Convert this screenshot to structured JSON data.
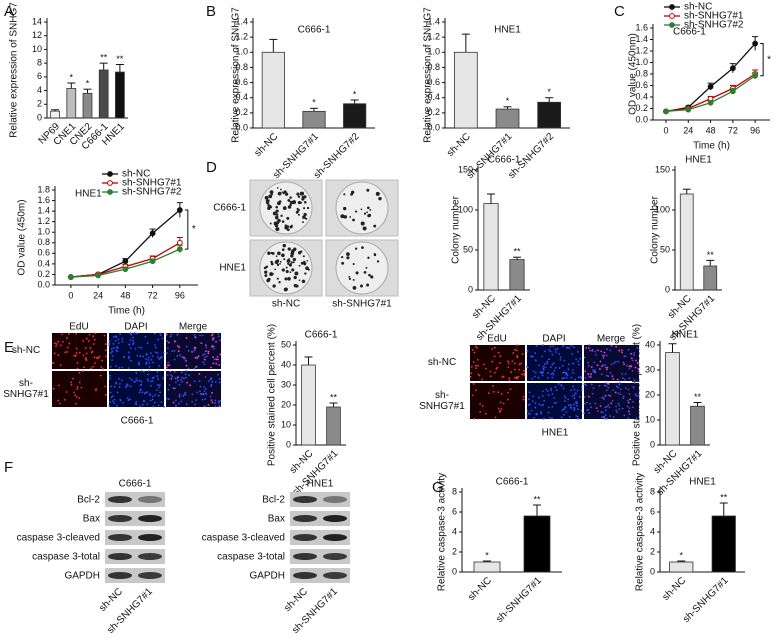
{
  "panels": [
    "A",
    "B",
    "C",
    "D",
    "E",
    "F",
    "G"
  ],
  "chart_data": [
    {
      "type": "bar",
      "ylabel": "Relative expression of SNHG7",
      "categories": [
        "NP69",
        "CNE1",
        "CNE2",
        "C666-1",
        "HNE1"
      ],
      "values": [
        1.0,
        4.3,
        3.6,
        7.0,
        6.7
      ],
      "errors": [
        0.2,
        0.8,
        0.6,
        1.0,
        1.1
      ],
      "colors": [
        "#f0f0f0",
        "#bdbdbd",
        "#8a8a8a",
        "#4a4a4a",
        "#111111"
      ],
      "annotations": [
        null,
        "*",
        "*",
        "**",
        "**"
      ],
      "ylim": [
        0,
        14
      ],
      "yticks": [
        0,
        2,
        4,
        6,
        8,
        10,
        12,
        14
      ]
    },
    {
      "type": "bar",
      "title": "C666-1",
      "ylabel": "Relative expression of SNHG7",
      "categories": [
        "sh-NC",
        "sh-SNHG7#1",
        "sh-SNHG7#2"
      ],
      "values": [
        1.0,
        0.22,
        0.32
      ],
      "errors": [
        0.17,
        0.04,
        0.05
      ],
      "colors": [
        "#e6e6e6",
        "#8a8a8a",
        "#1a1a1a"
      ],
      "annotations": [
        null,
        "*",
        "*"
      ],
      "ylim": [
        0,
        1.4
      ],
      "yticks": [
        {
          "value": 0,
          "label": "0.0"
        },
        {
          "value": 0.2,
          "label": "0.2"
        },
        {
          "value": 0.4,
          "label": "0.4"
        },
        {
          "value": 0.6,
          "label": "0.6"
        },
        {
          "value": 0.8,
          "label": "0.8"
        },
        {
          "value": 1.0,
          "label": "1.0"
        },
        {
          "value": 1.2,
          "label": "1.2"
        },
        {
          "value": 1.4,
          "label": "1.4"
        }
      ]
    },
    {
      "type": "bar",
      "title": "HNE1",
      "ylabel": "Relative expression of SNHG7",
      "categories": [
        "sh-NC",
        "sh-SNHG7#1",
        "sh-SNHG7#2"
      ],
      "values": [
        1.0,
        0.25,
        0.34
      ],
      "errors": [
        0.24,
        0.03,
        0.06
      ],
      "colors": [
        "#e6e6e6",
        "#8a8a8a",
        "#1a1a1a"
      ],
      "annotations": [
        null,
        "*",
        "*"
      ],
      "ylim": [
        0,
        1.4
      ],
      "yticks": [
        {
          "value": 0,
          "label": "0.0"
        },
        {
          "value": 0.2,
          "label": "0.2"
        },
        {
          "value": 0.4,
          "label": "0.4"
        },
        {
          "value": 0.6,
          "label": "0.6"
        },
        {
          "value": 0.8,
          "label": "0.8"
        },
        {
          "value": 1.0,
          "label": "1.0"
        },
        {
          "value": 1.2,
          "label": "1.2"
        },
        {
          "value": 1.4,
          "label": "1.4"
        }
      ]
    },
    {
      "type": "line",
      "title": "C666-1",
      "ylabel": "OD value (450nm)",
      "xlabel": "Time (h)",
      "x": [
        0,
        24,
        48,
        72,
        96
      ],
      "series": [
        {
          "name": "sh-NC",
          "color": "#111111",
          "fill": "#111111",
          "values": [
            0.15,
            0.22,
            0.58,
            0.9,
            1.33
          ],
          "errors": [
            0.01,
            0.02,
            0.06,
            0.08,
            0.12
          ]
        },
        {
          "name": "sh-SNHG7#1",
          "color": "#c00000",
          "fill": "#ffffff",
          "values": [
            0.15,
            0.2,
            0.37,
            0.55,
            0.8
          ],
          "errors": [
            0.01,
            0.02,
            0.04,
            0.05,
            0.07
          ]
        },
        {
          "name": "sh-SNHG7#2",
          "color": "#2e7d32",
          "fill": "#2e7d32",
          "values": [
            0.15,
            0.18,
            0.3,
            0.5,
            0.77
          ],
          "errors": [
            0.01,
            0.02,
            0.03,
            0.05,
            0.06
          ]
        }
      ],
      "significance": "*",
      "xlim": [
        -14,
        112
      ],
      "xticks": [
        0,
        24,
        48,
        72,
        96
      ],
      "ylim": [
        0,
        1.6
      ],
      "yticks": [
        {
          "value": 0,
          "label": "0.0"
        },
        {
          "value": 0.2,
          "label": "0.2"
        },
        {
          "value": 0.4,
          "label": "0.4"
        },
        {
          "value": 0.6,
          "label": "0.6"
        },
        {
          "value": 0.8,
          "label": "0.8"
        },
        {
          "value": 1.0,
          "label": "1.0"
        },
        {
          "value": 1.2,
          "label": "1.2"
        },
        {
          "value": 1.4,
          "label": "1.4"
        },
        {
          "value": 1.6,
          "label": "1.6"
        }
      ]
    },
    {
      "type": "line",
      "title": "HNE1",
      "ylabel": "OD value (450m)",
      "xlabel": "Time (h)",
      "x": [
        0,
        24,
        48,
        72,
        96
      ],
      "series": [
        {
          "name": "sh-NC",
          "color": "#111111",
          "fill": "#111111",
          "values": [
            0.15,
            0.2,
            0.45,
            0.98,
            1.42
          ],
          "errors": [
            0.01,
            0.02,
            0.05,
            0.08,
            0.14
          ]
        },
        {
          "name": "sh-SNHG7#1",
          "color": "#c00000",
          "fill": "#ffffff",
          "values": [
            0.15,
            0.2,
            0.35,
            0.5,
            0.8
          ],
          "errors": [
            0.01,
            0.02,
            0.04,
            0.05,
            0.1
          ]
        },
        {
          "name": "sh-SNHG7#2",
          "color": "#2e7d32",
          "fill": "#2e7d32",
          "values": [
            0.15,
            0.18,
            0.3,
            0.45,
            0.68
          ],
          "errors": [
            0.01,
            0.02,
            0.03,
            0.04,
            0.07
          ]
        }
      ],
      "significance": "*",
      "xlim": [
        -14,
        112
      ],
      "xticks": [
        0,
        24,
        48,
        72,
        96
      ],
      "ylim": [
        0,
        1.8
      ],
      "yticks": [
        {
          "value": 0,
          "label": "0.0"
        },
        {
          "value": 0.2,
          "label": "0.2"
        },
        {
          "value": 0.4,
          "label": "0.4"
        },
        {
          "value": 0.6,
          "label": "0.6"
        },
        {
          "value": 0.8,
          "label": "0.8"
        },
        {
          "value": 1.0,
          "label": "1.0"
        },
        {
          "value": 1.2,
          "label": "1.2"
        },
        {
          "value": 1.4,
          "label": "1.4"
        },
        {
          "value": 1.6,
          "label": "1.6"
        },
        {
          "value": 1.8,
          "label": "1.8"
        }
      ]
    },
    {
      "type": "bar",
      "title": "C666-1",
      "ylabel": "Colony number",
      "categories": [
        "sh-NC",
        "sh-SNHG7#1"
      ],
      "values": [
        108,
        38
      ],
      "errors": [
        12,
        3
      ],
      "colors": [
        "#e6e6e6",
        "#8a8a8a"
      ],
      "annotations": [
        null,
        "**"
      ],
      "ylim": [
        0,
        150
      ],
      "yticks": [
        0,
        50,
        100,
        150
      ]
    },
    {
      "type": "bar",
      "title": "HNE1",
      "ylabel": "Colony number",
      "categories": [
        "sh-NC",
        "sh-SNHG7#1"
      ],
      "values": [
        120,
        30
      ],
      "errors": [
        6,
        7
      ],
      "colors": [
        "#e6e6e6",
        "#8a8a8a"
      ],
      "annotations": [
        null,
        "**"
      ],
      "ylim": [
        0,
        150
      ],
      "yticks": [
        0,
        50,
        100,
        150
      ]
    },
    {
      "type": "bar",
      "title": "C666-1",
      "ylabel": "Positive stained cell percent (%)",
      "categories": [
        "sh-NC",
        "sh-SNHG7#1"
      ],
      "values": [
        40,
        19
      ],
      "errors": [
        4,
        2
      ],
      "colors": [
        "#e6e6e6",
        "#8a8a8a"
      ],
      "annotations": [
        null,
        "**"
      ],
      "ylim": [
        0,
        50
      ],
      "yticks": [
        0,
        10,
        20,
        30,
        40,
        50
      ]
    },
    {
      "type": "bar",
      "title": "HNE1",
      "ylabel": "Positive stained cell percent (%)",
      "categories": [
        "sh-NC",
        "sh-SNHG7#1"
      ],
      "values": [
        37,
        15.5
      ],
      "errors": [
        3.5,
        1.5
      ],
      "colors": [
        "#e6e6e6",
        "#8a8a8a"
      ],
      "annotations": [
        null,
        "**"
      ],
      "ylim": [
        0,
        40
      ],
      "yticks": [
        0,
        10,
        20,
        30,
        40
      ]
    },
    {
      "type": "bar",
      "title": "C666-1",
      "ylabel": "Relative caspase-3 activity",
      "categories": [
        "sh-NC",
        "sh-SNHG7#1"
      ],
      "values": [
        1.0,
        5.6
      ],
      "errors": [
        0.1,
        1.1
      ],
      "colors": [
        "#e6e6e6",
        "#000000"
      ],
      "annotations": [
        "*",
        "**"
      ],
      "ylim": [
        0,
        8
      ],
      "yticks": [
        0,
        2,
        4,
        6,
        8
      ]
    },
    {
      "type": "bar",
      "title": "HNE1",
      "ylabel": "Relative caspase-3 activity",
      "categories": [
        "sh-NC",
        "sh-SNHG7#1"
      ],
      "values": [
        1.0,
        5.6
      ],
      "errors": [
        0.1,
        1.3
      ],
      "colors": [
        "#e6e6e6",
        "#000000"
      ],
      "annotations": [
        "*",
        "**"
      ],
      "ylim": [
        0,
        8
      ],
      "yticks": [
        0,
        2,
        4,
        6,
        8
      ]
    }
  ],
  "colony_images": {
    "rows": [
      "C666-1",
      "HNE1"
    ],
    "columns": [
      "sh-NC",
      "sh-SNHG7#1"
    ]
  },
  "if_images": [
    {
      "channels": [
        "EdU",
        "DAPI",
        "Merge"
      ],
      "rows": [
        "sh-NC",
        "sh-SNHG7#1"
      ],
      "cell_line": "C666-1"
    },
    {
      "channels": [
        "EdU",
        "DAPI",
        "Merge"
      ],
      "rows": [
        "sh-NC",
        "sh-SNHG7#1"
      ],
      "cell_line": "HNE1"
    }
  ],
  "western_blots": [
    {
      "title": "C666-1",
      "proteins": [
        "Bcl-2",
        "Bax",
        "caspase 3-cleaved",
        "caspase 3-total",
        "GAPDH"
      ],
      "columns": [
        "sh-NC",
        "sh-SNHG7#1"
      ]
    },
    {
      "title": "HNE1",
      "proteins": [
        "Bcl-2",
        "Bax",
        "caspase 3-cleaved",
        "caspase 3-total",
        "GAPDH"
      ],
      "columns": [
        "sh-NC",
        "sh-SNHG7#1"
      ]
    }
  ]
}
